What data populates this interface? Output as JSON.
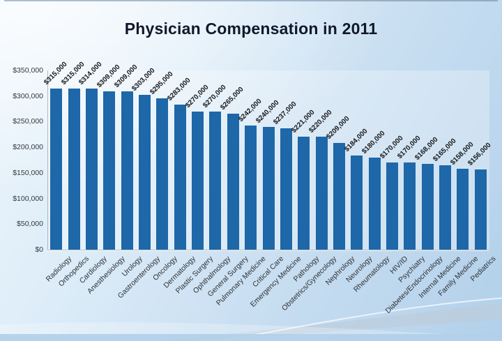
{
  "slide": {
    "title": "Physician Compensation in 2011"
  },
  "chart_data": {
    "type": "bar",
    "title": "Physician Compensation in 2011",
    "categories": [
      "Radiology",
      "Orthopedics",
      "Cardiology",
      "Anesthesiology",
      "Urology",
      "Gastroenterology",
      "Oncology",
      "Dermatology",
      "Plastic Surgery",
      "Ophthalmology",
      "General Surgery",
      "Pulmonary Medicine",
      "Critical Care",
      "Emergency Medicine",
      "Pathology",
      "Obstetrics/Gynecology",
      "Nephrology",
      "Neurology",
      "Rheumatology",
      "HIV/ID",
      "Psychiatry",
      "Diabetes/Endocrinology",
      "Internal Medicine",
      "Family Medicine",
      "Pediatrics"
    ],
    "values": [
      315000,
      315000,
      314000,
      309000,
      309000,
      303000,
      295000,
      283000,
      270000,
      270000,
      265000,
      242000,
      240000,
      237000,
      221000,
      220000,
      209000,
      184000,
      180000,
      170000,
      170000,
      168000,
      165000,
      158000,
      156000
    ],
    "value_labels": [
      "$315,000",
      "$315,000",
      "$314,000",
      "$309,000",
      "$309,000",
      "$303,000",
      "$295,000",
      "$283,000",
      "$270,000",
      "$270,000",
      "$265,000",
      "$242,000",
      "$240,000",
      "$237,000",
      "$221,000",
      "$220,000",
      "$209,000",
      "$184,000",
      "$180,000",
      "$170,000",
      "$170,000",
      "$168,000",
      "$165,000",
      "$158,000",
      "$156,000"
    ],
    "y_ticks": [
      {
        "label": "$350,000",
        "value": 350000
      },
      {
        "label": "$300,000",
        "value": 300000
      },
      {
        "label": "$250,000",
        "value": 250000
      },
      {
        "label": "$200,000",
        "value": 200000
      },
      {
        "label": "$150,000",
        "value": 150000
      },
      {
        "label": "$100,000",
        "value": 100000
      },
      {
        "label": "$50,000",
        "value": 50000
      },
      {
        "label": "$0",
        "value": 0
      }
    ],
    "ylim": [
      0,
      350000
    ],
    "grid": false,
    "legend": false,
    "bar_color": "#1e67a8"
  },
  "colors": {
    "bar": "#1e67a8",
    "title_text": "#10182b",
    "axis_text": "#33383d",
    "background_light": "#eef6fc",
    "background_dark": "#b2d0ea"
  }
}
